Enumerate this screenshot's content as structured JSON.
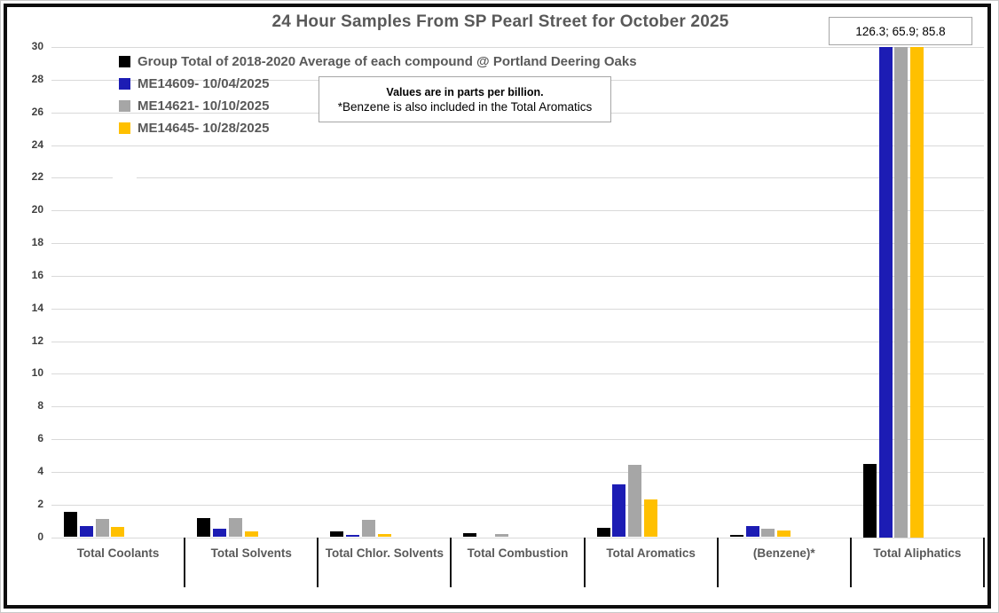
{
  "title": "24 Hour Samples From SP Pearl Street for October 2025",
  "clipped_values_label": "126.3; 65.9; 85.8",
  "note_box": {
    "line1": "Values are in parts per billion.",
    "line2": "*Benzene is also included in the Total Aromatics"
  },
  "legend": {
    "items": [
      {
        "label": "Group Total of 2018-2020 Average of each compound @ Portland Deering Oaks",
        "color": "#000000"
      },
      {
        "label": "ME14609- 10/04/2025",
        "color": "#1c1cb4"
      },
      {
        "label": "ME14621- 10/10/2025",
        "color": "#a6a6a6"
      },
      {
        "label": "ME14645- 10/28/2025",
        "color": "#ffc000"
      }
    ]
  },
  "chart_data": {
    "type": "bar",
    "title": "24 Hour Samples From SP Pearl Street for October 2025",
    "xlabel": "",
    "ylabel": "",
    "units": "parts per billion",
    "categories": [
      "Total Coolants",
      "Total Solvents",
      "Total Chlor. Solvents",
      "Total Combustion",
      "Total Aromatics",
      "(Benzene)*",
      "Total Aliphatics"
    ],
    "series": [
      {
        "name": "Group Total of 2018-2020 Average of each compound @ Portland Deering Oaks",
        "color": "#000000",
        "values": [
          1.55,
          1.15,
          0.35,
          0.25,
          0.55,
          0.15,
          4.5
        ]
      },
      {
        "name": "ME14609- 10/04/2025",
        "color": "#1c1cb4",
        "values": [
          0.7,
          0.5,
          0.15,
          0,
          3.25,
          0.7,
          126.3
        ]
      },
      {
        "name": "ME14621- 10/10/2025",
        "color": "#a6a6a6",
        "values": [
          1.1,
          1.15,
          1.05,
          0.2,
          4.4,
          0.5,
          65.9
        ]
      },
      {
        "name": "ME14645- 10/28/2025",
        "color": "#ffc000",
        "values": [
          0.65,
          0.35,
          0.2,
          0,
          2.3,
          0.4,
          85.8
        ]
      }
    ],
    "ylim": [
      0,
      30
    ],
    "ytick_step": 2,
    "yticks": [
      0,
      2,
      4,
      6,
      8,
      10,
      12,
      14,
      16,
      18,
      20,
      22,
      24,
      26,
      28,
      30
    ],
    "grid": true,
    "legend_position": "top-left-inside",
    "clipping": "bars above 30 ppb are clipped at plot top; actual values shown in box: 126.3; 65.9; 85.8 (Total Aliphatics, series ME14609 / ME14621 / ME14645)"
  }
}
